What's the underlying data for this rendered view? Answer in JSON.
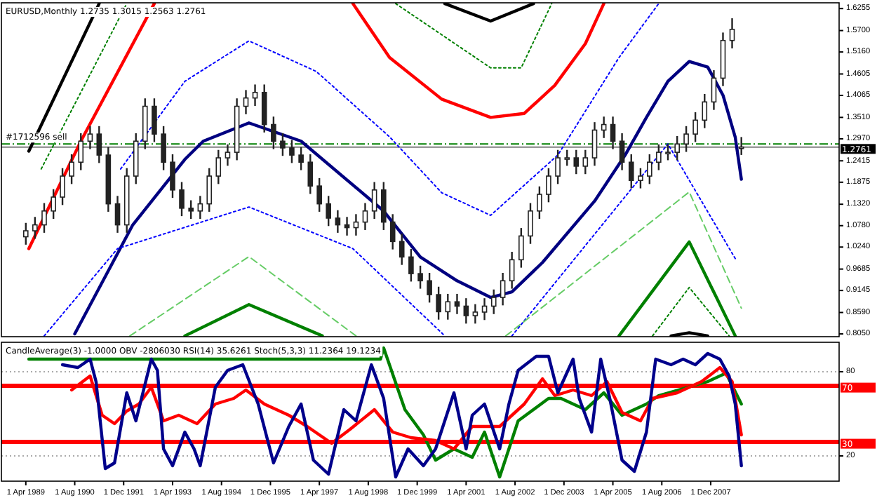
{
  "chart_data": [
    {
      "type": "candlestick",
      "title": "EURUSD,Monthly  1.2735 1.3015 1.2563 1.2761",
      "tick_labels": "y",
      "xlim": [
        "1988-08",
        "2011-06"
      ],
      "ylim": [
        0.798,
        1.64
      ],
      "yticks": [
        1.6255,
        {
          "value": 1.57,
          "label": "1.5700"
        },
        {
          "value": 1.516,
          "label": "1.5160"
        },
        1.4605,
        1.4065,
        {
          "value": 1.351,
          "label": "1.3510"
        },
        {
          "value": 1.297,
          "label": "1.2970"
        },
        1.2415,
        1.1875,
        {
          "value": 1.132,
          "label": "1.1320"
        },
        {
          "value": 1.078,
          "label": "1.0780"
        },
        {
          "value": 1.024,
          "label": "1.0240"
        },
        0.9685,
        0.9145,
        {
          "value": 0.859,
          "label": "0.8590"
        },
        {
          "value": 0.805,
          "label": "0.8050"
        }
      ],
      "ref_lines": [
        {
          "axis": "y",
          "value": 1.284,
          "label": "#1712596 sell",
          "color": "#008000",
          "line_style": "dashed"
        },
        {
          "axis": "y",
          "value": 1.2761,
          "label": "1.2761",
          "color": "#808080",
          "line_style": "solid"
        }
      ],
      "x": [
        "1989-04",
        "1989-07",
        "1989-10",
        "1990-01",
        "1990-04",
        "1990-07",
        "1990-10",
        "1991-01",
        "1991-04",
        "1991-07",
        "1991-10",
        "1992-01",
        "1992-04",
        "1992-07",
        "1992-10",
        "1993-01",
        "1993-04",
        "1993-07",
        "1993-10",
        "1994-01",
        "1994-04",
        "1994-07",
        "1994-10",
        "1995-01",
        "1995-04",
        "1995-07",
        "1995-10",
        "1996-01",
        "1996-04",
        "1996-07",
        "1996-10",
        "1997-01",
        "1997-04",
        "1997-07",
        "1997-10",
        "1998-01",
        "1998-04",
        "1998-07",
        "1998-10",
        "1999-01",
        "1999-04",
        "1999-07",
        "1999-10",
        "2000-01",
        "2000-04",
        "2000-07",
        "2000-10",
        "2001-01",
        "2001-04",
        "2001-07",
        "2001-10",
        "2002-01",
        "2002-04",
        "2002-07",
        "2002-10",
        "2003-01",
        "2003-04",
        "2003-07",
        "2003-10",
        "2004-01",
        "2004-04",
        "2004-07",
        "2004-10",
        "2005-01",
        "2005-04",
        "2005-07",
        "2005-10",
        "2006-01",
        "2006-04",
        "2006-07",
        "2006-10",
        "2007-01",
        "2007-04",
        "2007-07",
        "2007-10",
        "2008-01",
        "2008-04",
        "2008-07",
        "2008-10"
      ],
      "ohlc": [
        [
          1.05,
          1.085,
          1.03,
          1.065
        ],
        [
          1.065,
          1.1,
          1.045,
          1.08
        ],
        [
          1.08,
          1.135,
          1.06,
          1.115
        ],
        [
          1.115,
          1.17,
          1.095,
          1.15
        ],
        [
          1.15,
          1.223,
          1.13,
          1.203
        ],
        [
          1.203,
          1.258,
          1.183,
          1.238
        ],
        [
          1.238,
          1.311,
          1.218,
          1.291
        ],
        [
          1.291,
          1.329,
          1.271,
          1.309
        ],
        [
          1.309,
          1.329,
          1.236,
          1.256
        ],
        [
          1.256,
          1.276,
          1.113,
          1.133
        ],
        [
          1.133,
          1.153,
          1.06,
          1.08
        ],
        [
          1.08,
          1.223,
          1.06,
          1.203
        ],
        [
          1.203,
          1.311,
          1.183,
          1.291
        ],
        [
          1.291,
          1.399,
          1.271,
          1.379
        ],
        [
          1.379,
          1.399,
          1.289,
          1.309
        ],
        [
          1.309,
          1.329,
          1.218,
          1.238
        ],
        [
          1.238,
          1.258,
          1.148,
          1.168
        ],
        [
          1.168,
          1.188,
          1.102,
          1.122
        ],
        [
          1.122,
          1.142,
          1.095,
          1.115
        ],
        [
          1.115,
          1.153,
          1.095,
          1.133
        ],
        [
          1.133,
          1.223,
          1.113,
          1.203
        ],
        [
          1.203,
          1.269,
          1.183,
          1.249
        ],
        [
          1.249,
          1.283,
          1.229,
          1.263
        ],
        [
          1.263,
          1.399,
          1.243,
          1.379
        ],
        [
          1.379,
          1.42,
          1.359,
          1.4
        ],
        [
          1.4,
          1.434,
          1.38,
          1.414
        ],
        [
          1.414,
          1.434,
          1.313,
          1.333
        ],
        [
          1.333,
          1.353,
          1.271,
          1.291
        ],
        [
          1.291,
          1.311,
          1.254,
          1.274
        ],
        [
          1.274,
          1.294,
          1.236,
          1.256
        ],
        [
          1.256,
          1.276,
          1.218,
          1.238
        ],
        [
          1.238,
          1.258,
          1.158,
          1.178
        ],
        [
          1.178,
          1.198,
          1.113,
          1.133
        ],
        [
          1.133,
          1.153,
          1.077,
          1.097
        ],
        [
          1.097,
          1.117,
          1.06,
          1.08
        ],
        [
          1.08,
          1.1,
          1.053,
          1.073
        ],
        [
          1.073,
          1.107,
          1.053,
          1.087
        ],
        [
          1.087,
          1.135,
          1.067,
          1.115
        ],
        [
          1.115,
          1.188,
          1.095,
          1.168
        ],
        [
          1.168,
          1.188,
          1.067,
          1.087
        ],
        [
          1.087,
          1.107,
          1.018,
          1.038
        ],
        [
          1.038,
          1.058,
          0.979,
          0.999
        ],
        [
          0.999,
          1.019,
          0.937,
          0.957
        ],
        [
          0.957,
          0.977,
          0.919,
          0.939
        ],
        [
          0.939,
          0.959,
          0.884,
          0.904
        ],
        [
          0.904,
          0.924,
          0.841,
          0.861
        ],
        [
          0.861,
          0.906,
          0.841,
          0.886
        ],
        [
          0.886,
          0.906,
          0.855,
          0.875
        ],
        [
          0.875,
          0.895,
          0.831,
          0.851
        ],
        [
          0.851,
          0.88,
          0.831,
          0.86
        ],
        [
          0.86,
          0.895,
          0.84,
          0.875
        ],
        [
          0.875,
          0.917,
          0.855,
          0.897
        ],
        [
          0.897,
          0.959,
          0.877,
          0.939
        ],
        [
          0.939,
          1.012,
          0.919,
          0.992
        ],
        [
          0.992,
          1.072,
          0.972,
          1.052
        ],
        [
          1.052,
          1.135,
          1.032,
          1.115
        ],
        [
          1.115,
          1.177,
          1.095,
          1.157
        ],
        [
          1.157,
          1.223,
          1.137,
          1.203
        ],
        [
          1.203,
          1.269,
          1.183,
          1.249
        ],
        [
          1.249,
          1.269,
          1.229,
          1.249
        ],
        [
          1.249,
          1.269,
          1.208,
          1.228
        ],
        [
          1.228,
          1.269,
          1.208,
          1.249
        ],
        [
          1.249,
          1.339,
          1.229,
          1.319
        ],
        [
          1.319,
          1.353,
          1.299,
          1.333
        ],
        [
          1.333,
          1.353,
          1.271,
          1.291
        ],
        [
          1.291,
          1.311,
          1.218,
          1.238
        ],
        [
          1.238,
          1.258,
          1.172,
          1.192
        ],
        [
          1.192,
          1.223,
          1.172,
          1.203
        ],
        [
          1.203,
          1.258,
          1.183,
          1.238
        ],
        [
          1.238,
          1.283,
          1.218,
          1.263
        ],
        [
          1.263,
          1.283,
          1.243,
          1.263
        ],
        [
          1.263,
          1.304,
          1.243,
          1.284
        ],
        [
          1.284,
          1.329,
          1.264,
          1.309
        ],
        [
          1.309,
          1.364,
          1.289,
          1.344
        ],
        [
          1.344,
          1.41,
          1.324,
          1.39
        ],
        [
          1.39,
          1.47,
          1.37,
          1.45
        ],
        [
          1.45,
          1.565,
          1.43,
          1.545
        ],
        [
          1.545,
          1.601,
          1.525,
          1.573
        ],
        [
          1.2735,
          1.3015,
          1.2563,
          1.2761
        ]
      ],
      "series": [
        {
          "type": "line",
          "color": "#000080",
          "line_style": "solid",
          "x": [
            "1990-08",
            "1992-03",
            "1993-08",
            "1994-02",
            "1995-05",
            "1996-10",
            "1999-01",
            "2000-01",
            "2001-01",
            "2001-12",
            "2002-07",
            "2003-05",
            "2004-10",
            "2005-08",
            "2006-03",
            "2006-10",
            "2007-05",
            "2007-11",
            "2008-04",
            "2008-08",
            "2008-10"
          ],
          "values": [
            0.805,
            1.08,
            1.245,
            1.291,
            1.337,
            1.291,
            1.115,
            0.999,
            0.939,
            0.897,
            0.911,
            0.985,
            1.14,
            1.256,
            1.351,
            1.442,
            1.492,
            1.478,
            1.407,
            1.301,
            1.195
          ]
        },
        {
          "type": "line",
          "color": "#ff0000",
          "line_style": "solid",
          "x": [
            "1989-05",
            "1990-10",
            "1992-10"
          ],
          "values": [
            1.02,
            1.291,
            1.638
          ]
        },
        {
          "type": "line",
          "color": "#ff0000",
          "line_style": "solid",
          "x": [
            "1998-03",
            "1999-03",
            "2000-08",
            "2001-12",
            "2002-11",
            "2003-09",
            "2004-07",
            "2005-01"
          ],
          "values": [
            1.638,
            1.502,
            1.397,
            1.351,
            1.361,
            1.432,
            1.537,
            1.638
          ]
        },
        {
          "type": "line",
          "color": "#000000",
          "line_style": "solid",
          "x": [
            "1989-05",
            "1991-04"
          ],
          "values": [
            1.266,
            1.638
          ]
        },
        {
          "type": "line",
          "color": "#000000",
          "line_style": "solid",
          "x": [
            "2000-09",
            "2001-12",
            "2003-02"
          ],
          "values": [
            1.638,
            1.594,
            1.638
          ]
        },
        {
          "type": "line",
          "color": "#000000",
          "line_style": "solid",
          "x": [
            "2006-11",
            "2007-05",
            "2007-11"
          ],
          "values": [
            0.8,
            0.808,
            0.8
          ]
        },
        {
          "type": "line",
          "color": "#008000",
          "line_style": "solid",
          "x": [
            "1993-08",
            "1995-05",
            "1997-05"
          ],
          "values": [
            0.8,
            0.879,
            0.8
          ]
        },
        {
          "type": "line",
          "color": "#008000",
          "line_style": "solid",
          "x": [
            "2005-06",
            "2007-05",
            "2008-08"
          ],
          "values": [
            0.8,
            1.037,
            0.8
          ]
        },
        {
          "type": "line",
          "color": "#0000ff",
          "line_style": "dotted",
          "x": [
            "1991-11",
            "1993-08",
            "1995-05",
            "1997-03",
            "1999-03",
            "2000-08",
            "2001-12",
            "2003-10",
            "2005-06",
            "2006-07"
          ],
          "values": [
            1.221,
            1.442,
            1.544,
            1.467,
            1.302,
            1.161,
            1.104,
            1.256,
            1.502,
            1.638
          ]
        },
        {
          "type": "line",
          "color": "#0000ff",
          "line_style": "dotted",
          "x": [
            "1989-10",
            "1991-10",
            "1995-05",
            "1998-03",
            "2000-09"
          ],
          "values": [
            0.8,
            1.02,
            1.125,
            1.02,
            0.8
          ]
        },
        {
          "type": "line",
          "color": "#0000ff",
          "line_style": "dotted",
          "x": [
            "2002-07",
            "2006-10",
            "2008-08"
          ],
          "values": [
            0.8,
            1.284,
            0.995
          ]
        },
        {
          "type": "line",
          "color": "#66cc66",
          "line_style": "dashed",
          "x": [
            "1992-02",
            "1995-05",
            "1998-04"
          ],
          "values": [
            0.8,
            1.0,
            0.8
          ]
        },
        {
          "type": "line",
          "color": "#66cc66",
          "line_style": "dashed",
          "x": [
            "2002-05",
            "2007-05",
            "2008-10"
          ],
          "values": [
            0.8,
            1.163,
            0.87
          ]
        },
        {
          "type": "line",
          "color": "#008000",
          "line_style": "dotted",
          "x": [
            "1989-09",
            "1992-01"
          ],
          "values": [
            1.221,
            1.638
          ]
        },
        {
          "type": "line",
          "color": "#008000",
          "line_style": "dotted",
          "x": [
            "1999-05",
            "2001-12",
            "2002-10",
            "2003-08"
          ],
          "values": [
            1.638,
            1.476,
            1.476,
            1.638
          ]
        },
        {
          "type": "line",
          "color": "#008000",
          "line_style": "dotted",
          "x": [
            "2006-05",
            "2007-05",
            "2008-06"
          ],
          "values": [
            0.8,
            0.922,
            0.8
          ]
        }
      ]
    },
    {
      "type": "line",
      "title": "CandleAverage(3) -1.0000  OBV -2806030  RSI(14) 35.6261  Stoch(5,3,3) 11.2364 19.1234",
      "grid": "y",
      "xlim": [
        "1988-08",
        "2011-06"
      ],
      "xticks": [
        {
          "value": "1989-04",
          "label": "1 Apr 1989"
        },
        {
          "value": "1990-08",
          "label": "1 Aug 1990"
        },
        {
          "value": "1991-12",
          "label": "1 Dec 1991"
        },
        {
          "value": "1993-04",
          "label": "1 Apr 1993"
        },
        {
          "value": "1994-08",
          "label": "1 Aug 1994"
        },
        {
          "value": "1995-12",
          "label": "1 Dec 1995"
        },
        {
          "value": "1997-04",
          "label": "1 Apr 1997"
        },
        {
          "value": "1998-08",
          "label": "1 Aug 1998"
        },
        {
          "value": "1999-12",
          "label": "1 Dec 1999"
        },
        {
          "value": "2001-04",
          "label": "1 Apr 2001"
        },
        {
          "value": "2002-08",
          "label": "1 Aug 2002"
        },
        {
          "value": "2003-12",
          "label": "1 Dec 2003"
        },
        {
          "value": "2005-04",
          "label": "1 Apr 2005"
        },
        {
          "value": "2006-08",
          "label": "1 Aug 2006"
        },
        {
          "value": "2007-12",
          "label": "1 Dec 2007"
        }
      ],
      "ylim": [
        2,
        101
      ],
      "yticks": [
        80,
        20
      ],
      "ref_lines": [
        {
          "axis": "y",
          "value": 70,
          "label": "70",
          "color": "#ff0000",
          "line_style": "solid"
        },
        {
          "axis": "y",
          "value": 30,
          "label": "30",
          "color": "#ff0000",
          "line_style": "solid"
        }
      ],
      "series": [
        {
          "color": "#008000",
          "x": [
            "1989-05",
            "1998-12",
            "1999-01",
            "1999-08",
            "2000-02",
            "2000-06",
            "2000-12",
            "2001-06",
            "2001-10",
            "2002-03",
            "2002-09",
            "2003-07",
            "2003-11",
            "2004-07",
            "2005-01",
            "2005-07",
            "2006-03",
            "2006-07",
            "2007-11",
            "2008-05",
            "2008-10"
          ],
          "values": [
            89,
            89,
            97,
            53,
            35,
            17,
            25,
            19,
            37,
            5,
            45,
            61,
            61,
            53,
            65,
            49,
            57,
            63,
            73,
            79,
            57
          ]
        },
        {
          "color": "#ff0000",
          "x": [
            "1990-07",
            "1991-01",
            "1991-05",
            "1991-09",
            "1992-01",
            "1992-05",
            "1992-09",
            "1993-01",
            "1993-06",
            "1993-12",
            "1994-06",
            "1994-12",
            "1995-04",
            "1995-10",
            "1996-06",
            "1996-12",
            "1997-08",
            "1998-02",
            "1998-10",
            "1999-04",
            "1999-10",
            "2000-06",
            "2000-12",
            "2001-06",
            "2002-03",
            "2002-11",
            "2003-05",
            "2003-09",
            "2004-03",
            "2004-09",
            "2005-02",
            "2005-07",
            "2006-01",
            "2006-05",
            "2007-01",
            "2007-09",
            "2008-03",
            "2008-07",
            "2008-10"
          ],
          "values": [
            67,
            77,
            49,
            43,
            52,
            57,
            69,
            45,
            49,
            43,
            57,
            61,
            67,
            57,
            49,
            41,
            29,
            39,
            53,
            37,
            33,
            31,
            25,
            41,
            41,
            57,
            75,
            63,
            67,
            63,
            73,
            51,
            45,
            61,
            65,
            73,
            83,
            73,
            35
          ]
        },
        {
          "color": "#00008b",
          "x": [
            "1990-04",
            "1990-09",
            "1991-01",
            "1991-03",
            "1991-06",
            "1991-09",
            "1992-01",
            "1992-04",
            "1992-09",
            "1992-11",
            "1993-01",
            "1993-04",
            "1993-08",
            "1993-11",
            "1994-01",
            "1994-06",
            "1994-10",
            "1995-03",
            "1995-08",
            "1996-01",
            "1996-06",
            "1996-10",
            "1997-02",
            "1997-07",
            "1997-12",
            "1998-04",
            "1998-09",
            "1999-01",
            "1999-05",
            "1999-09",
            "2000-02",
            "2000-06",
            "2000-12",
            "2001-04",
            "2001-06",
            "2001-10",
            "2002-03",
            "2002-06",
            "2002-09",
            "2003-03",
            "2003-07",
            "2003-10",
            "2004-03",
            "2004-05",
            "2004-09",
            "2004-12",
            "2005-03",
            "2005-07",
            "2005-11",
            "2006-03",
            "2006-06",
            "2006-11",
            "2007-03",
            "2007-07",
            "2007-11",
            "2008-03",
            "2008-06",
            "2008-08",
            "2008-10"
          ],
          "values": [
            85,
            83,
            89,
            73,
            11,
            15,
            65,
            45,
            89,
            81,
            25,
            13,
            37,
            25,
            13,
            69,
            81,
            85,
            57,
            15,
            41,
            57,
            17,
            7,
            53,
            45,
            85,
            61,
            5,
            25,
            13,
            25,
            65,
            25,
            49,
            57,
            25,
            57,
            81,
            91,
            91,
            65,
            89,
            61,
            37,
            89,
            61,
            17,
            9,
            37,
            89,
            85,
            89,
            85,
            93,
            89,
            77,
            57,
            13
          ]
        }
      ]
    }
  ]
}
